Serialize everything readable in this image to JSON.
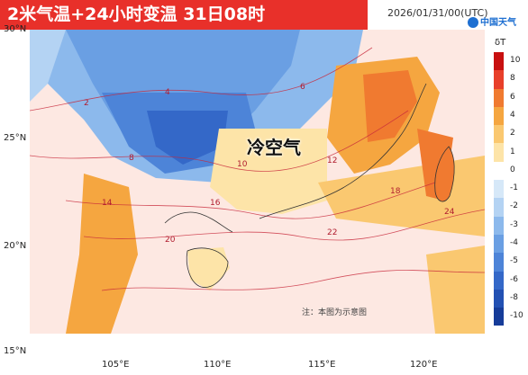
{
  "title": "2米气温+24小时变温   31日08时",
  "timestamp": "2026/01/31/00(UTC)",
  "logo_text": "中国天气",
  "annotation_label": "冷空气",
  "note": "注：本图为示意图",
  "lat_labels": [
    "30°N",
    "25°N",
    "20°N",
    "15°N"
  ],
  "lon_labels": [
    "105°E",
    "110°E",
    "115°E",
    "120°E"
  ],
  "legend": {
    "title": "δT",
    "labels": [
      "10",
      "8",
      "6",
      "4",
      "2",
      "1",
      "0",
      "-1",
      "-2",
      "-3",
      "-4",
      "-5",
      "-6",
      "-8",
      "-10"
    ],
    "colors": [
      "#c81010",
      "#e8402a",
      "#f07a30",
      "#f5a640",
      "#fac870",
      "#fde4a8",
      "#ffffff",
      "#d6e8f8",
      "#b4d3f3",
      "#8cb9ec",
      "#6a9fe3",
      "#4d84d8",
      "#3468c8",
      "#2351b3",
      "#163c99"
    ]
  },
  "contour_labels": [
    "2",
    "4",
    "6",
    "8",
    "10",
    "12",
    "14",
    "16",
    "18",
    "20",
    "22",
    "24"
  ]
}
